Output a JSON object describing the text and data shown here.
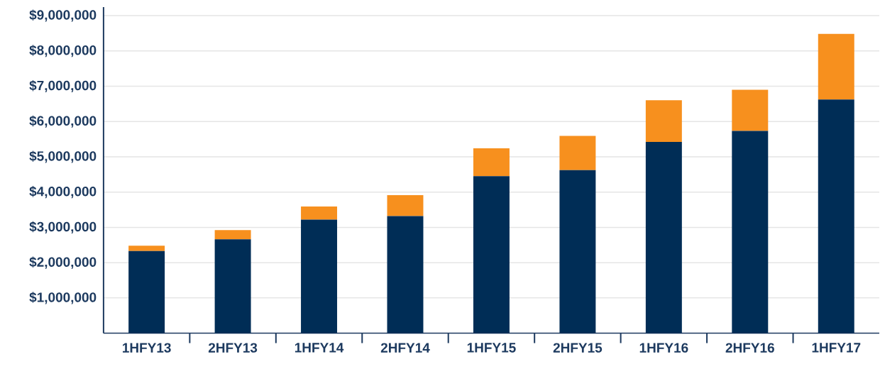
{
  "chart_data": {
    "type": "bar",
    "stacked": true,
    "categories": [
      "1HFY13",
      "2HFY13",
      "1HFY14",
      "2HFY14",
      "1HFY15",
      "2HFY15",
      "1HFY16",
      "2HFY16",
      "1HFY17"
    ],
    "series": [
      {
        "color": "#002d56",
        "values": [
          2330000,
          2660000,
          3220000,
          3320000,
          4450000,
          4620000,
          5420000,
          5730000,
          6620000
        ]
      },
      {
        "color": "#f7901e",
        "values": [
          150000,
          260000,
          370000,
          590000,
          790000,
          970000,
          1180000,
          1170000,
          1860000
        ]
      }
    ],
    "ylim": [
      0,
      9240000
    ],
    "yticks": [
      {
        "value": 1000000,
        "label": "$1,000,000"
      },
      {
        "value": 2000000,
        "label": "$2,000,000"
      },
      {
        "value": 3000000,
        "label": "$3,000,000"
      },
      {
        "value": 4000000,
        "label": "$4,000,000"
      },
      {
        "value": 5000000,
        "label": "$5,000,000"
      },
      {
        "value": 6000000,
        "label": "$6,000,000"
      },
      {
        "value": 7000000,
        "label": "$7,000,000"
      },
      {
        "value": 8000000,
        "label": "$8,000,000"
      },
      {
        "value": 9000000,
        "label": "$9,000,000"
      }
    ],
    "grid": "y"
  }
}
